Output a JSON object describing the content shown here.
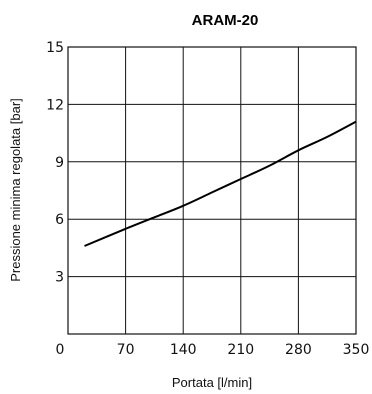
{
  "chart_data": {
    "type": "line",
    "title": "ARAM-20",
    "xlabel": "Portata [l/min]",
    "ylabel": "Pressione minima regolata [bar]",
    "xlim": [
      0,
      350
    ],
    "ylim": [
      0,
      15
    ],
    "xticks": [
      "0",
      "70",
      "140",
      "210",
      "280",
      "350"
    ],
    "yticks": [
      "3",
      "6",
      "9",
      "12",
      "15"
    ],
    "grid": true,
    "series": [
      {
        "x": [
          20,
          70,
          105,
          140,
          175,
          210,
          245,
          280,
          315,
          350
        ],
        "y": [
          4.6,
          5.5,
          6.1,
          6.7,
          7.4,
          8.1,
          8.8,
          9.6,
          10.3,
          11.1
        ]
      }
    ]
  }
}
